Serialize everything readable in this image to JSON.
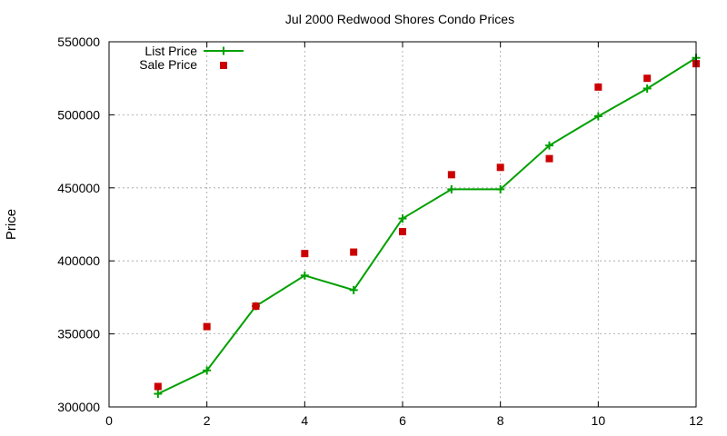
{
  "chart_data": {
    "type": "line",
    "title": "Jul 2000 Redwood Shores Condo Prices",
    "xlabel": "",
    "ylabel": "Price",
    "xlim": [
      0,
      12
    ],
    "ylim": [
      300000,
      550000
    ],
    "xticks": [
      "0",
      "2",
      "4",
      "6",
      "8",
      "10",
      "12"
    ],
    "yticks": [
      "300000",
      "350000",
      "400000",
      "450000",
      "500000",
      "550000"
    ],
    "grid": true,
    "legend_position": "top-left",
    "series": [
      {
        "name": "List Price",
        "style": "line-plus",
        "color": "#00a000",
        "x": [
          1,
          2,
          3,
          4,
          5,
          6,
          7,
          8,
          9,
          10,
          11,
          12
        ],
        "y": [
          309000,
          325000,
          369000,
          390000,
          380000,
          429000,
          449000,
          449000,
          479000,
          499000,
          518000,
          539000
        ]
      },
      {
        "name": "Sale Price",
        "style": "square-points",
        "color": "#cc0000",
        "x": [
          1,
          2,
          3,
          4,
          5,
          6,
          7,
          8,
          9,
          10,
          11,
          12
        ],
        "y": [
          314000,
          355000,
          369000,
          405000,
          406000,
          420000,
          459000,
          464000,
          470000,
          519000,
          525000,
          535000
        ]
      }
    ]
  }
}
